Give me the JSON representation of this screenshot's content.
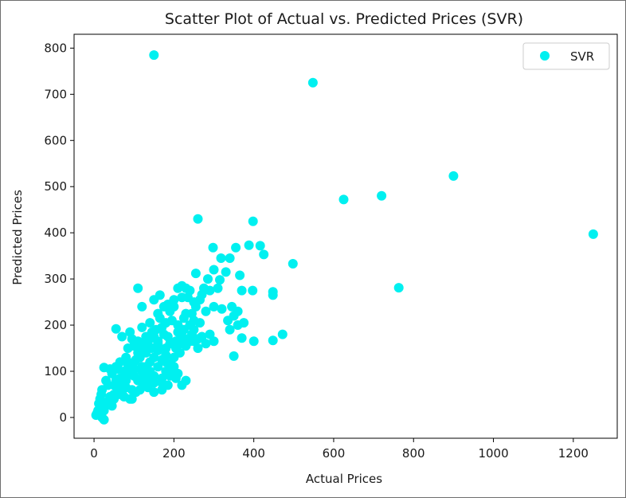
{
  "colors": {
    "series": "#00f0f0",
    "axis": "#000000",
    "frame": "#6e6e6e"
  },
  "chart_data": {
    "type": "scatter",
    "title": "Scatter Plot of Actual vs. Predicted Prices (SVR)",
    "xlabel": "Actual Prices",
    "ylabel": "Predicted Prices",
    "xlim": [
      -50,
      1310
    ],
    "ylim": [
      -45,
      830
    ],
    "xticks": [
      0,
      200,
      400,
      600,
      800,
      1000,
      1200
    ],
    "yticks": [
      0,
      100,
      200,
      300,
      400,
      500,
      600,
      700,
      800
    ],
    "xtick_labels": [
      "0",
      "200",
      "400",
      "600",
      "800",
      "1000",
      "1200"
    ],
    "ytick_labels": [
      "0",
      "100",
      "200",
      "300",
      "400",
      "500",
      "600",
      "700",
      "800"
    ],
    "grid": false,
    "legend": {
      "position": "top-right",
      "entries": [
        "SVR"
      ]
    },
    "series": [
      {
        "name": "SVR",
        "color": "#00f0f0",
        "points": [
          [
            150,
            785
          ],
          [
            548,
            725
          ],
          [
            900,
            523
          ],
          [
            720,
            480
          ],
          [
            625,
            472
          ],
          [
            1250,
            397
          ],
          [
            260,
            430
          ],
          [
            398,
            425
          ],
          [
            763,
            281
          ],
          [
            498,
            333
          ],
          [
            298,
            368
          ],
          [
            355,
            368
          ],
          [
            388,
            373
          ],
          [
            416,
            372
          ],
          [
            425,
            353
          ],
          [
            318,
            345
          ],
          [
            340,
            345
          ],
          [
            300,
            320
          ],
          [
            330,
            315
          ],
          [
            255,
            312
          ],
          [
            285,
            300
          ],
          [
            315,
            298
          ],
          [
            365,
            308
          ],
          [
            310,
            280
          ],
          [
            275,
            280
          ],
          [
            290,
            275
          ],
          [
            270,
            266
          ],
          [
            240,
            275
          ],
          [
            370,
            275
          ],
          [
            397,
            275
          ],
          [
            448,
            272
          ],
          [
            448,
            265
          ],
          [
            110,
            280
          ],
          [
            150,
            255
          ],
          [
            165,
            265
          ],
          [
            210,
            280
          ],
          [
            220,
            285
          ],
          [
            230,
            280
          ],
          [
            200,
            255
          ],
          [
            120,
            240
          ],
          [
            300,
            240
          ],
          [
            320,
            235
          ],
          [
            345,
            240
          ],
          [
            350,
            220
          ],
          [
            360,
            230
          ],
          [
            335,
            210
          ],
          [
            340,
            190
          ],
          [
            360,
            200
          ],
          [
            375,
            205
          ],
          [
            280,
            230
          ],
          [
            265,
            205
          ],
          [
            230,
            225
          ],
          [
            190,
            230
          ],
          [
            160,
            225
          ],
          [
            140,
            205
          ],
          [
            120,
            195
          ],
          [
            270,
            175
          ],
          [
            250,
            190
          ],
          [
            220,
            175
          ],
          [
            300,
            165
          ],
          [
            370,
            172
          ],
          [
            400,
            165
          ],
          [
            448,
            167
          ],
          [
            472,
            180
          ],
          [
            350,
            133
          ],
          [
            240,
            165
          ],
          [
            205,
            165
          ],
          [
            180,
            150
          ],
          [
            150,
            175
          ],
          [
            120,
            150
          ],
          [
            95,
            170
          ],
          [
            90,
            185
          ],
          [
            55,
            192
          ],
          [
            70,
            175
          ],
          [
            260,
            150
          ],
          [
            230,
            155
          ],
          [
            215,
            140
          ],
          [
            200,
            130
          ],
          [
            190,
            115
          ],
          [
            180,
            135
          ],
          [
            170,
            125
          ],
          [
            160,
            145
          ],
          [
            150,
            130
          ],
          [
            140,
            120
          ],
          [
            130,
            110
          ],
          [
            120,
            100
          ],
          [
            110,
            140
          ],
          [
            100,
            120
          ],
          [
            95,
            95
          ],
          [
            90,
            110
          ],
          [
            80,
            130
          ],
          [
            85,
            150
          ],
          [
            75,
            100
          ],
          [
            65,
            85
          ],
          [
            60,
            105
          ],
          [
            55,
            80
          ],
          [
            50,
            70
          ],
          [
            45,
            95
          ],
          [
            40,
            105
          ],
          [
            35,
            70
          ],
          [
            30,
            80
          ],
          [
            25,
            108
          ],
          [
            20,
            60
          ],
          [
            18,
            50
          ],
          [
            15,
            40
          ],
          [
            12,
            30
          ],
          [
            10,
            15
          ],
          [
            8,
            10
          ],
          [
            5,
            5
          ],
          [
            20,
            0
          ],
          [
            25,
            -5
          ],
          [
            15,
            20
          ],
          [
            30,
            30
          ],
          [
            40,
            45
          ],
          [
            50,
            50
          ],
          [
            60,
            60
          ],
          [
            70,
            70
          ],
          [
            80,
            80
          ],
          [
            100,
            90
          ],
          [
            120,
            110
          ],
          [
            140,
            100
          ],
          [
            160,
            110
          ],
          [
            180,
            120
          ],
          [
            200,
            110
          ],
          [
            210,
            95
          ],
          [
            190,
            90
          ],
          [
            170,
            85
          ],
          [
            150,
            90
          ],
          [
            130,
            95
          ],
          [
            110,
            80
          ],
          [
            95,
            60
          ],
          [
            90,
            40
          ],
          [
            70,
            55
          ],
          [
            75,
            45
          ],
          [
            50,
            40
          ],
          [
            45,
            25
          ],
          [
            35,
            35
          ],
          [
            25,
            15
          ],
          [
            140,
            170
          ],
          [
            155,
            190
          ],
          [
            170,
            195
          ],
          [
            180,
            205
          ],
          [
            195,
            210
          ],
          [
            210,
            200
          ],
          [
            225,
            190
          ],
          [
            240,
            200
          ],
          [
            250,
            210
          ],
          [
            175,
            180
          ],
          [
            160,
            160
          ],
          [
            145,
            150
          ],
          [
            130,
            140
          ],
          [
            115,
            130
          ],
          [
            105,
            125
          ],
          [
            85,
            115
          ],
          [
            65,
            120
          ],
          [
            55,
            110
          ],
          [
            130,
            175
          ],
          [
            145,
            185
          ],
          [
            165,
            215
          ],
          [
            175,
            240
          ],
          [
            185,
            245
          ],
          [
            200,
            240
          ],
          [
            220,
            260
          ],
          [
            235,
            260
          ],
          [
            250,
            250
          ],
          [
            125,
            160
          ],
          [
            100,
            155
          ],
          [
            110,
            165
          ],
          [
            135,
            155
          ],
          [
            160,
            165
          ],
          [
            185,
            175
          ],
          [
            210,
            185
          ],
          [
            225,
            215
          ],
          [
            245,
            225
          ],
          [
            255,
            240
          ],
          [
            265,
            255
          ],
          [
            180,
            100
          ],
          [
            195,
            95
          ],
          [
            170,
            75
          ],
          [
            150,
            75
          ],
          [
            140,
            80
          ],
          [
            125,
            70
          ],
          [
            115,
            60
          ],
          [
            105,
            55
          ],
          [
            95,
            40
          ],
          [
            230,
            80
          ],
          [
            220,
            70
          ],
          [
            205,
            85
          ],
          [
            190,
            160
          ],
          [
            205,
            150
          ],
          [
            215,
            160
          ],
          [
            250,
            165
          ],
          [
            260,
            170
          ],
          [
            280,
            160
          ],
          [
            290,
            180
          ],
          [
            245,
            180
          ],
          [
            230,
            170
          ],
          [
            100,
            105
          ],
          [
            85,
            95
          ],
          [
            75,
            90
          ],
          [
            65,
            70
          ],
          [
            60,
            50
          ],
          [
            80,
            65
          ],
          [
            120,
            85
          ],
          [
            135,
            65
          ],
          [
            150,
            55
          ],
          [
            170,
            60
          ],
          [
            185,
            70
          ]
        ]
      }
    ]
  }
}
